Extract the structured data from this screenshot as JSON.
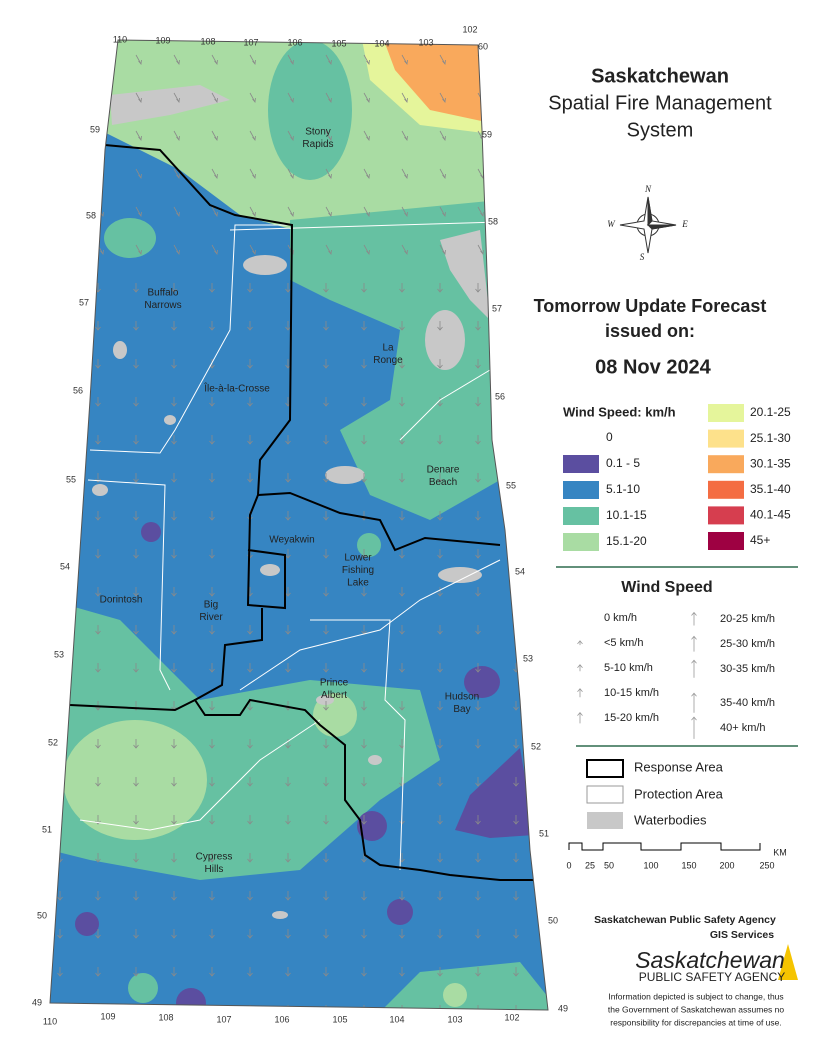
{
  "title": {
    "lines": [
      "Saskatchewan",
      "Spatial Fire Management",
      "System"
    ]
  },
  "forecast": {
    "heading": [
      "Tomorrow Update Forecast",
      "issued on:"
    ],
    "date": "08 Nov 2024"
  },
  "wind_speed_legend": {
    "title": "Wind Speed: km/h",
    "classes": [
      {
        "label": "0",
        "color": "#ffffff"
      },
      {
        "label": "0.1 - 5",
        "color": "#5b4ea0"
      },
      {
        "label": "5.1-10",
        "color": "#3685c2"
      },
      {
        "label": "10.1-15",
        "color": "#66c1a2"
      },
      {
        "label": "15.1-20",
        "color": "#a9dca3"
      },
      {
        "label": "20.1-25",
        "color": "#e5f59b"
      },
      {
        "label": "25.1-30",
        "color": "#fde18b"
      },
      {
        "label": "30.1-35",
        "color": "#f9a95c"
      },
      {
        "label": "35.1-40",
        "color": "#f46d43"
      },
      {
        "label": "40.1-45",
        "color": "#d63e4f"
      },
      {
        "label": "45+",
        "color": "#9e0142"
      }
    ]
  },
  "arrow_legend": {
    "title": "Wind Speed",
    "items": [
      "0 km/h",
      "<5 km/h",
      "5-10 km/h",
      "10-15 km/h",
      "15-20 km/h",
      "20-25 km/h",
      "25-30 km/h",
      "30-35 km/h",
      "35-40 km/h",
      "40+ km/h"
    ]
  },
  "boundary_legend": {
    "items": [
      "Response Area",
      "Protection Area",
      "Waterbodies"
    ]
  },
  "scale_bar": {
    "labels": [
      "0",
      "25",
      "50",
      "100",
      "150",
      "200",
      "250"
    ],
    "unit": "KM"
  },
  "compass": {
    "letters": [
      "N",
      "W",
      "E",
      "S"
    ]
  },
  "footer": {
    "agency": "Saskatchewan Public Safety Agency",
    "unit": "GIS  Services",
    "logo": [
      "Saskatchewan",
      "PUBLIC SAFETY AGENCY"
    ],
    "disclaimer": [
      "Information depicted is subject to change, thus",
      "the Government of Saskatchewan assumes no",
      "responsibility for discrepancies at time of use."
    ]
  },
  "places": [
    {
      "lines": [
        "Stony",
        "Rapids"
      ]
    },
    {
      "lines": [
        "Buffalo",
        "Narrows"
      ]
    },
    {
      "lines": [
        "La",
        "Ronge"
      ]
    },
    {
      "lines": [
        "Île-à-la-Crosse"
      ]
    },
    {
      "lines": [
        "Denare",
        "Beach"
      ]
    },
    {
      "lines": [
        "Weyakwin"
      ]
    },
    {
      "lines": [
        "Lower",
        "Fishing",
        "Lake"
      ]
    },
    {
      "lines": [
        "Dorintosh"
      ]
    },
    {
      "lines": [
        "Big",
        "River"
      ]
    },
    {
      "lines": [
        "Prince",
        "Albert"
      ]
    },
    {
      "lines": [
        "Hudson",
        "Bay"
      ]
    },
    {
      "lines": [
        "Cypress",
        "Hills"
      ]
    }
  ],
  "longitudes_top": [
    "110",
    "109",
    "108",
    "107",
    "106",
    "105",
    "104",
    "103",
    "102"
  ],
  "longitudes_bottom": [
    "110",
    "109",
    "108",
    "107",
    "106",
    "105",
    "104",
    "103",
    "102"
  ],
  "latitudes_left": [
    "59",
    "58",
    "57",
    "56",
    "55",
    "54",
    "53",
    "52",
    "51",
    "50",
    "49"
  ],
  "latitudes_right": [
    "60",
    "59",
    "58",
    "57",
    "56",
    "55",
    "54",
    "53",
    "52",
    "51",
    "50",
    "49"
  ]
}
